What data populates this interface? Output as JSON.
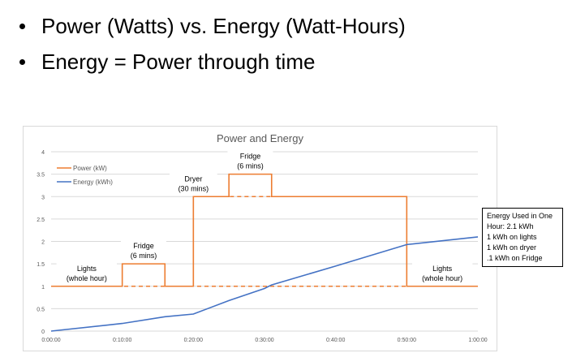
{
  "bullets": [
    "Power (Watts) vs. Energy (Watt-Hours)",
    "Energy = Power through time"
  ],
  "colors": {
    "power": "#ED7D31",
    "energy": "#4472C4",
    "text": "#595959",
    "grid": "#D9D9D9"
  },
  "chart_data": {
    "type": "line",
    "title": "Power and Energy",
    "ylim": [
      0,
      4
    ],
    "y_ticks": [
      "0",
      "0.5",
      "1",
      "1.5",
      "2",
      "2.5",
      "3",
      "3.5",
      "4"
    ],
    "x_ticks": [
      "0:00:00",
      "0:10:00",
      "0:20:00",
      "0:30:00",
      "0:40:00",
      "0:50:00",
      "1:00:00"
    ],
    "x_unit_minutes": [
      0,
      10,
      20,
      30,
      40,
      50,
      60
    ],
    "grid": true,
    "legend_position": "top-left",
    "series": [
      {
        "name": "Power (kW)",
        "color": "#ED7D31",
        "x": [
          0,
          10,
          10,
          16,
          16,
          20,
          20,
          25,
          25,
          31,
          31,
          50,
          50,
          60
        ],
        "y": [
          1,
          1,
          1.5,
          1.5,
          1,
          1,
          3,
          3,
          3.5,
          3.5,
          3,
          3,
          1,
          1
        ]
      },
      {
        "name": "Energy (kWh)",
        "color": "#4472C4",
        "x": [
          0,
          10,
          16,
          20,
          25,
          30,
          31,
          40,
          50,
          60
        ],
        "y": [
          0,
          0.17,
          0.32,
          0.38,
          0.68,
          0.95,
          1.03,
          1.45,
          1.93,
          2.1
        ]
      }
    ],
    "dashed_baselines": [
      {
        "x": [
          0,
          60
        ],
        "y": 1
      },
      {
        "x": [
          20,
          50
        ],
        "y": 3
      }
    ],
    "annotations": [
      {
        "lines": [
          "Lights",
          "(whole hour)"
        ],
        "x": 5,
        "y": 1
      },
      {
        "lines": [
          "Fridge",
          "(6 mins)"
        ],
        "x": 13,
        "y": 1.5
      },
      {
        "lines": [
          "Dryer",
          "(30 mins)"
        ],
        "x": 20,
        "y": 3
      },
      {
        "lines": [
          "Fridge",
          "(6 mins)"
        ],
        "x": 28,
        "y": 3.5
      },
      {
        "lines": [
          "Lights",
          "(whole hour)"
        ],
        "x": 55,
        "y": 1
      }
    ]
  },
  "note": {
    "lines": [
      "Energy Used in One",
      "Hour: 2.1 kWh",
      "1 kWh on lights",
      "1 kWh on dryer",
      ".1 kWh on Fridge"
    ]
  }
}
